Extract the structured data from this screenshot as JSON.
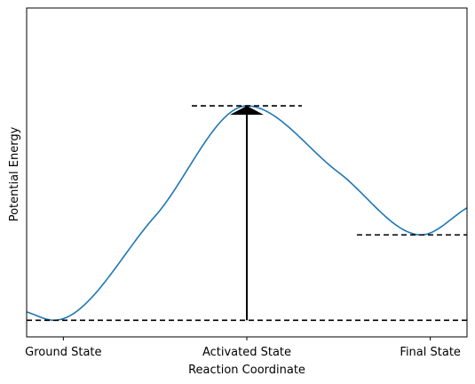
{
  "chart_data": {
    "type": "line",
    "title": "",
    "xlabel": "Reaction Coordinate",
    "ylabel": "Potential Energy",
    "xlim": [
      -0.2,
      2.2
    ],
    "ylim": [
      -0.08,
      1.5
    ],
    "grid": false,
    "x_ticks": [
      {
        "value": 0,
        "label": "Ground State"
      },
      {
        "value": 1,
        "label": "Activated State"
      },
      {
        "value": 2,
        "label": "Final State"
      }
    ],
    "curve": {
      "description_points": [
        {
          "x": -0.2,
          "y": 0.04
        },
        {
          "x": -0.05,
          "y": 0.0
        },
        {
          "x": 0.5,
          "y": 0.5
        },
        {
          "x": 1.0,
          "y": 1.03
        },
        {
          "x": 1.5,
          "y": 0.71
        },
        {
          "x": 1.95,
          "y": 0.41
        },
        {
          "x": 2.2,
          "y": 0.54
        }
      ],
      "color": "#1f77b4"
    },
    "reference_lines": [
      {
        "y": 0.0,
        "x_start": -0.2,
        "x_end": 2.2,
        "style": "dashed"
      },
      {
        "y": 1.03,
        "x_start": 0.7,
        "x_end": 1.3,
        "style": "dashed"
      },
      {
        "y": 0.41,
        "x_start": 1.6,
        "x_end": 2.2,
        "style": "dashed"
      }
    ],
    "arrow": {
      "x": 1.0,
      "y_start": 0.0,
      "y_end": 1.03,
      "color": "#000000"
    }
  }
}
